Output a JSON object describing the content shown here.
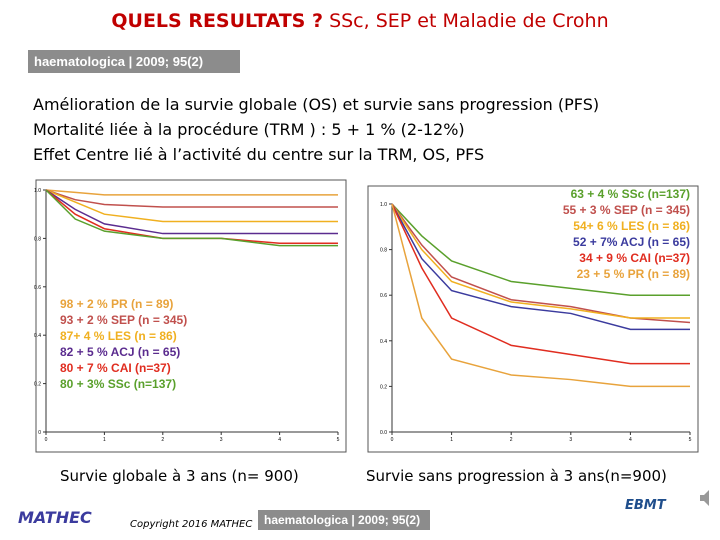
{
  "title": {
    "bold": "QUELS RESULTATS ?",
    "rest": "SSc, SEP et Maladie de Crohn"
  },
  "badge": "haematologica | 2009; 95(2)",
  "bullets": [
    "Amélioration de la survie globale (OS) et survie sans progression (PFS)",
    "Mortalité liée à la procédure (TRM ) : 5 + 1 % (2-12%)",
    "Effet Centre lié à l’activité du centre sur la TRM, OS, PFS"
  ],
  "captions": [
    "Survie globale à 3 ans (n= 900)",
    "Survie sans progression à 3 ans(n=900)"
  ],
  "footer": {
    "logo_left": "MATHEC",
    "copyright": "Copyright 2016 MATHEC",
    "badge": "haematologica | 2009; 95(2)",
    "logo_right": "EBMT"
  },
  "chart_data": [
    {
      "type": "line",
      "x": [
        0,
        0.5,
        1,
        2,
        3,
        4,
        5
      ],
      "xlim": [
        0,
        5
      ],
      "xticks": [
        0,
        1,
        2,
        3,
        4,
        5
      ],
      "ylim": [
        0,
        1
      ],
      "yticks": [
        0,
        0.2,
        0.4,
        0.6,
        0.8,
        {
          "value": 1,
          "label": "1.0"
        }
      ],
      "legend": "bottom-left",
      "series": [
        {
          "name": "98 + 2  % PR   (n = 89)",
          "color": "#e8a33c",
          "values": [
            1,
            0.99,
            0.98,
            0.98,
            0.98,
            0.98,
            0.98
          ]
        },
        {
          "name": "93 + 2  % SEP   (n = 345)",
          "color": "#c0504d",
          "values": [
            1,
            0.96,
            0.94,
            0.93,
            0.93,
            0.93,
            0.93
          ]
        },
        {
          "name": "87+ 4  % LES   (n = 86)",
          "color": "#f0b020",
          "values": [
            1,
            0.95,
            0.9,
            0.87,
            0.87,
            0.87,
            0.87
          ]
        },
        {
          "name": "82 + 5  % ACJ   (n = 65)",
          "color": "#5b2c8f",
          "values": [
            1,
            0.92,
            0.86,
            0.82,
            0.82,
            0.82,
            0.82
          ]
        },
        {
          "name": "80 + 7 % CAI (n=37)",
          "color": "#e02d20",
          "values": [
            1,
            0.9,
            0.84,
            0.8,
            0.8,
            0.78,
            0.78
          ]
        },
        {
          "name": "80 + 3% SSc   (n=137)",
          "color": "#5aa02c",
          "values": [
            1,
            0.88,
            0.83,
            0.8,
            0.8,
            0.77,
            0.77
          ]
        }
      ]
    },
    {
      "type": "line",
      "x": [
        0,
        0.5,
        1,
        2,
        3,
        4,
        5
      ],
      "xlim": [
        0,
        5
      ],
      "xticks": [
        0,
        1,
        2,
        3,
        4,
        5
      ],
      "ylim": [
        0,
        1
      ],
      "yticks": [
        {
          "value": 0,
          "label": "0.0"
        },
        0.2,
        0.4,
        0.6,
        0.8,
        {
          "value": 1,
          "label": "1.0"
        }
      ],
      "legend": "top-right",
      "series": [
        {
          "name": "63 + 4 % SSc  (n=137)",
          "color": "#5aa02c",
          "values": [
            1,
            0.86,
            0.75,
            0.66,
            0.63,
            0.6,
            0.6
          ]
        },
        {
          "name": "55 + 3  % SEP   (n = 345)",
          "color": "#c0504d",
          "values": [
            1,
            0.82,
            0.68,
            0.58,
            0.55,
            0.5,
            0.48
          ]
        },
        {
          "name": "54+ 6 % LES   (n = 86)",
          "color": "#f0b020",
          "values": [
            1,
            0.8,
            0.66,
            0.57,
            0.54,
            0.5,
            0.5
          ]
        },
        {
          "name": "52 + 7% ACJ   (n = 65)",
          "color": "#3b3b9e",
          "values": [
            1,
            0.76,
            0.62,
            0.55,
            0.52,
            0.45,
            0.45
          ]
        },
        {
          "name": "34 + 9 % CAI   (n=37)",
          "color": "#e02d20",
          "values": [
            1,
            0.72,
            0.5,
            0.38,
            0.34,
            0.3,
            0.3
          ]
        },
        {
          "name": "23 + 5 % PR   (n = 89)",
          "color": "#e8a33c",
          "values": [
            1,
            0.5,
            0.32,
            0.25,
            0.23,
            0.2,
            0.2
          ]
        }
      ]
    }
  ]
}
